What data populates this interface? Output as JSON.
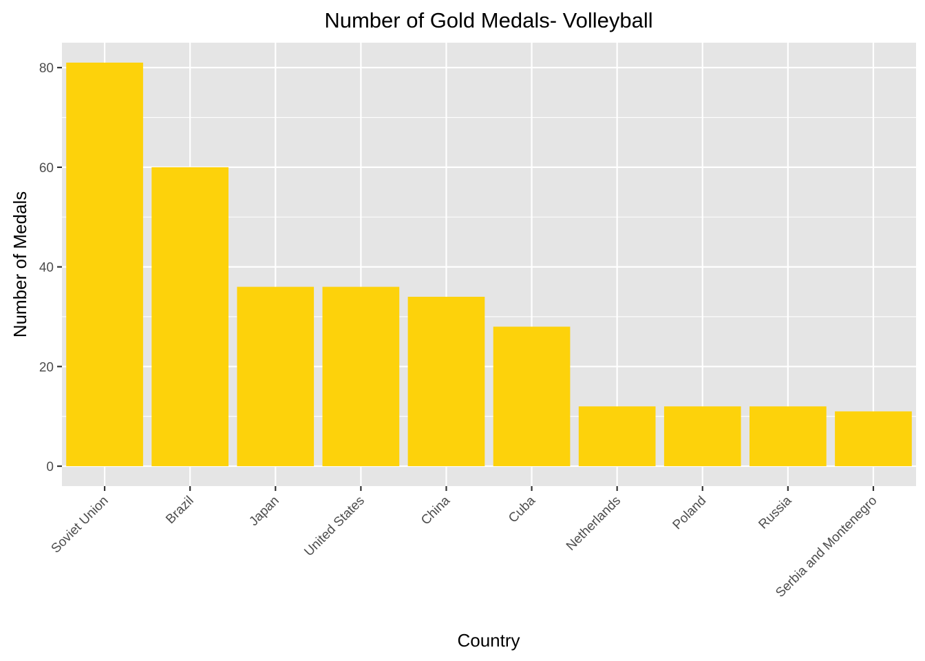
{
  "chart_data": {
    "type": "bar",
    "title": "Number of Gold Medals- Volleyball",
    "xlabel": "Country",
    "ylabel": "Number of Medals",
    "categories": [
      "Soviet Union",
      "Brazil",
      "Japan",
      "United States",
      "China",
      "Cuba",
      "Netherlands",
      "Poland",
      "Russia",
      "Serbia and Montenegro"
    ],
    "values": [
      81,
      60,
      36,
      36,
      34,
      28,
      12,
      12,
      12,
      11
    ],
    "ylim": [
      -4,
      85
    ],
    "yticks": [
      0,
      20,
      40,
      60,
      80
    ],
    "grid": true,
    "bar_color": "#FDD20B",
    "panel_color": "#E5E5E5",
    "grid_color": "#FFFFFF"
  }
}
